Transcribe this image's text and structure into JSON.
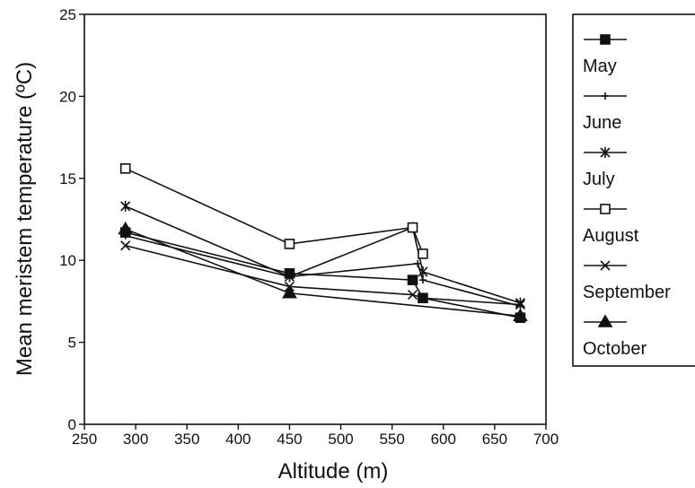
{
  "chart_data": {
    "type": "line",
    "title": "",
    "xlabel": "Altitude (m)",
    "ylabel": "Mean meristem temperature (ºC)",
    "xlim": [
      250,
      700
    ],
    "ylim": [
      0,
      25
    ],
    "xticks": [
      250,
      300,
      350,
      400,
      450,
      500,
      550,
      600,
      650,
      700
    ],
    "yticks": [
      0,
      5,
      10,
      15,
      20,
      25
    ],
    "grid": false,
    "legend_position": "right",
    "series": [
      {
        "name": "May",
        "marker": "filled-square",
        "points": [
          [
            290,
            11.7
          ],
          [
            450,
            9.2
          ],
          [
            570,
            8.8
          ],
          [
            580,
            7.7
          ],
          [
            675,
            6.5
          ]
        ]
      },
      {
        "name": "June",
        "marker": "plus",
        "points": [
          [
            290,
            11.5
          ],
          [
            450,
            9.0
          ],
          [
            575,
            9.8
          ],
          [
            580,
            8.8
          ],
          [
            675,
            7.2
          ]
        ]
      },
      {
        "name": "July",
        "marker": "asterisk",
        "points": [
          [
            290,
            13.3
          ],
          [
            450,
            9.0
          ],
          [
            570,
            12.0
          ],
          [
            580,
            9.3
          ],
          [
            675,
            7.4
          ]
        ]
      },
      {
        "name": "August",
        "marker": "open-square",
        "points": [
          [
            290,
            15.6
          ],
          [
            450,
            11.0
          ],
          [
            570,
            12.0
          ],
          [
            580,
            10.4
          ]
        ]
      },
      {
        "name": "September",
        "marker": "x",
        "points": [
          [
            290,
            10.9
          ],
          [
            450,
            8.4
          ],
          [
            570,
            7.9
          ],
          [
            580,
            7.7
          ],
          [
            675,
            7.3
          ]
        ]
      },
      {
        "name": "October",
        "marker": "filled-triangle",
        "points": [
          [
            290,
            11.9
          ],
          [
            450,
            8.0
          ],
          [
            675,
            6.6
          ]
        ]
      }
    ]
  }
}
